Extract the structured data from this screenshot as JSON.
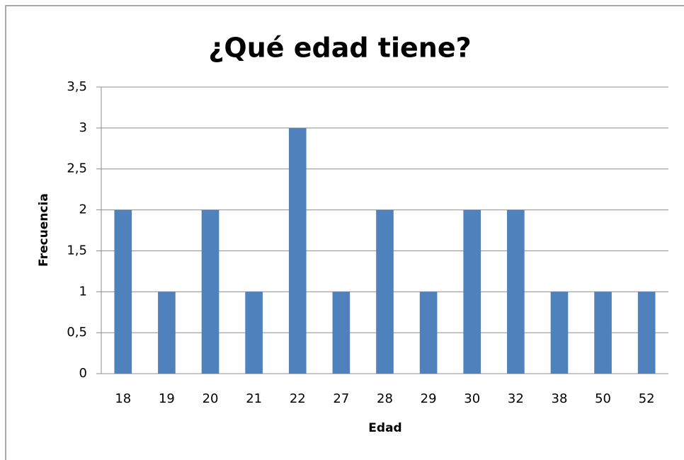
{
  "chart_data": {
    "type": "bar",
    "title": "¿Qué edad tiene?",
    "x_label": "Edad",
    "y_label": "Frecuencia",
    "categories": [
      "18",
      "19",
      "20",
      "21",
      "22",
      "27",
      "28",
      "29",
      "30",
      "32",
      "38",
      "50",
      "52"
    ],
    "values": [
      2,
      1,
      2,
      1,
      3,
      1,
      2,
      1,
      2,
      2,
      1,
      1,
      1
    ],
    "color": "#4f81bd",
    "ylim": [
      0,
      3.5
    ],
    "yticks": [
      0,
      {
        "value": 0.5,
        "label": "0,5"
      },
      1,
      {
        "value": 1.5,
        "label": "1,5"
      },
      2,
      {
        "value": 2.5,
        "label": "2,5"
      },
      3,
      {
        "value": 3.5,
        "label": "3,5"
      }
    ],
    "grid": true
  }
}
